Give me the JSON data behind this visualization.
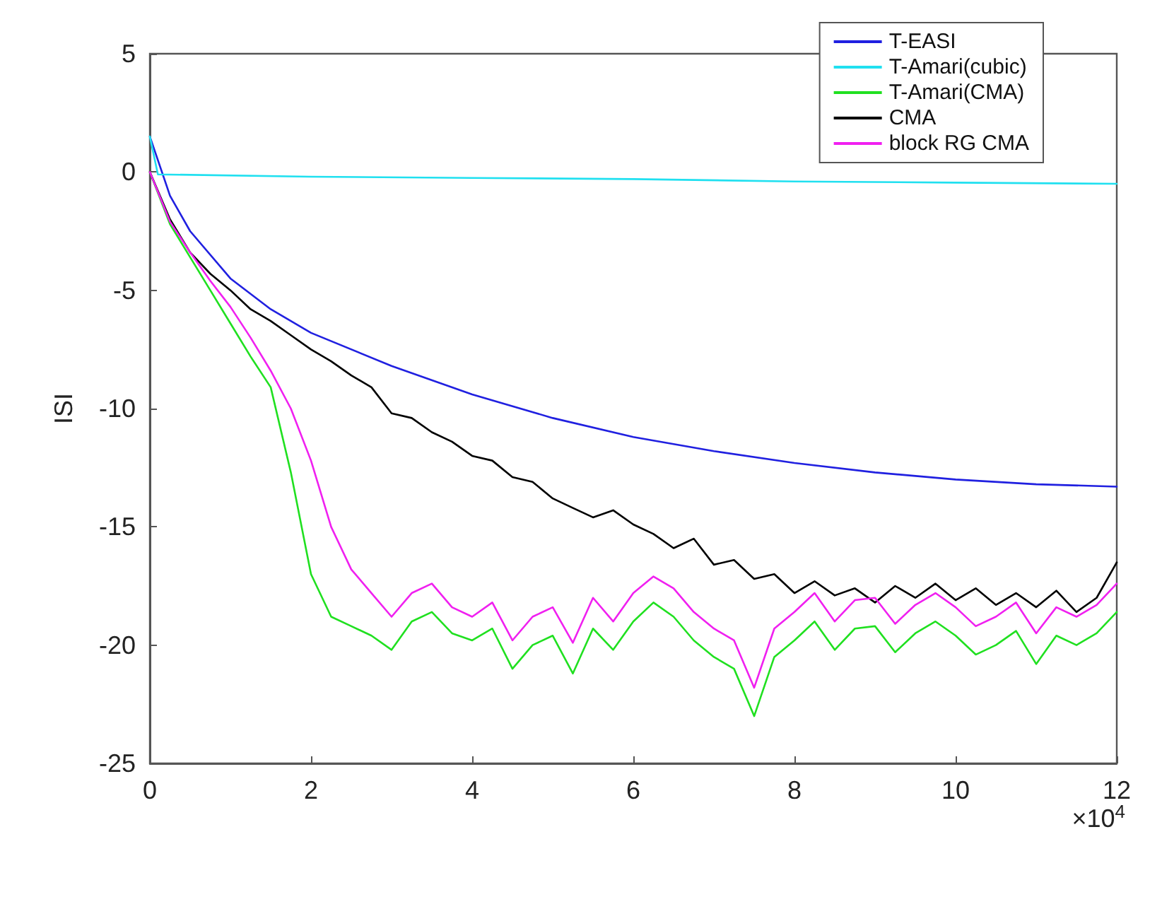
{
  "chart_data": {
    "type": "line",
    "ylabel": "ISI",
    "xlim": [
      0,
      12
    ],
    "xticks": [
      0,
      2,
      4,
      6,
      8,
      10,
      12
    ],
    "ylim": [
      -25,
      5
    ],
    "yticks": [
      -25,
      -20,
      -15,
      -10,
      -5,
      0,
      5
    ],
    "grid": false,
    "legend": "top right",
    "marker": "none",
    "line_style": "solid",
    "annotations": [
      "×10$^{4}$"
    ],
    "series": [
      {
        "name": "T-EASI",
        "color": "#2020e0",
        "x": [
          0,
          0.25,
          0.5,
          1,
          1.5,
          2,
          3,
          4,
          5,
          6,
          7,
          8,
          9,
          10,
          11,
          12
        ],
        "values": [
          1.5,
          -1,
          -2.5,
          -4.5,
          -5.8,
          -6.8,
          -8.2,
          -9.4,
          -10.4,
          -11.2,
          -11.8,
          -12.3,
          -12.7,
          -13,
          -13.2,
          -13.3
        ]
      },
      {
        "name": "T-Amari(cubic)",
        "color": "#20e0f0",
        "x": [
          0,
          0.1,
          2,
          4,
          6,
          8,
          10,
          12
        ],
        "values": [
          1.5,
          -0.1,
          -0.2,
          -0.25,
          -0.3,
          -0.4,
          -0.45,
          -0.5
        ]
      },
      {
        "name": "T-Amari(CMA)",
        "color": "#20e020",
        "x": [
          0,
          0.25,
          0.5,
          0.75,
          1,
          1.25,
          1.5,
          1.75,
          2,
          2.25,
          2.5,
          2.75,
          3,
          3.25,
          3.5,
          3.75,
          4,
          4.25,
          4.5,
          4.75,
          5,
          5.25,
          5.5,
          5.75,
          6,
          6.25,
          6.5,
          6.75,
          7,
          7.25,
          7.5,
          7.75,
          8,
          8.25,
          8.5,
          8.75,
          9,
          9.25,
          9.5,
          9.75,
          10,
          10.25,
          10.5,
          10.75,
          11,
          11.25,
          11.5,
          11.75,
          12
        ],
        "values": [
          0,
          -2.2,
          -3.6,
          -5.0,
          -6.4,
          -7.8,
          -9.1,
          -12.7,
          -17.0,
          -18.8,
          -19.2,
          -19.6,
          -20.2,
          -19.0,
          -18.6,
          -19.5,
          -19.8,
          -19.3,
          -21.0,
          -20.0,
          -19.6,
          -21.2,
          -19.3,
          -20.2,
          -19.0,
          -18.2,
          -18.8,
          -19.8,
          -20.5,
          -21.0,
          -23.0,
          -20.5,
          -19.8,
          -19.0,
          -20.2,
          -19.3,
          -19.2,
          -20.3,
          -19.5,
          -19.0,
          -19.6,
          -20.4,
          -20.0,
          -19.4,
          -20.8,
          -19.6,
          -20.0,
          -19.5,
          -18.6
        ]
      },
      {
        "name": "CMA",
        "color": "#000000",
        "x": [
          0,
          0.25,
          0.5,
          0.75,
          1,
          1.25,
          1.5,
          1.75,
          2,
          2.25,
          2.5,
          2.75,
          3,
          3.25,
          3.5,
          3.75,
          4,
          4.25,
          4.5,
          4.75,
          5,
          5.25,
          5.5,
          5.75,
          6,
          6.25,
          6.5,
          6.75,
          7,
          7.25,
          7.5,
          7.75,
          8,
          8.25,
          8.5,
          8.75,
          9,
          9.25,
          9.5,
          9.75,
          10,
          10.25,
          10.5,
          10.75,
          11,
          11.25,
          11.5,
          11.75,
          12
        ],
        "values": [
          0,
          -2,
          -3.4,
          -4.3,
          -5.0,
          -5.8,
          -6.3,
          -6.9,
          -7.5,
          -8.0,
          -8.6,
          -9.1,
          -10.2,
          -10.4,
          -11.0,
          -11.4,
          -12.0,
          -12.2,
          -12.9,
          -13.1,
          -13.8,
          -14.2,
          -14.6,
          -14.3,
          -14.9,
          -15.3,
          -15.9,
          -15.5,
          -16.6,
          -16.4,
          -17.2,
          -17.0,
          -17.8,
          -17.3,
          -17.9,
          -17.6,
          -18.2,
          -17.5,
          -18.0,
          -17.4,
          -18.1,
          -17.6,
          -18.3,
          -17.8,
          -18.4,
          -17.7,
          -18.6,
          -18.0,
          -16.5
        ]
      },
      {
        "name": "block RG CMA",
        "color": "#f020f0",
        "x": [
          0,
          0.25,
          0.5,
          0.75,
          1,
          1.25,
          1.5,
          1.75,
          2,
          2.25,
          2.5,
          2.75,
          3,
          3.25,
          3.5,
          3.75,
          4,
          4.25,
          4.5,
          4.75,
          5,
          5.25,
          5.5,
          5.75,
          6,
          6.25,
          6.5,
          6.75,
          7,
          7.25,
          7.5,
          7.75,
          8,
          8.25,
          8.5,
          8.75,
          9,
          9.25,
          9.5,
          9.75,
          10,
          10.25,
          10.5,
          10.75,
          11,
          11.25,
          11.5,
          11.75,
          12
        ],
        "values": [
          0,
          -2.1,
          -3.4,
          -4.6,
          -5.7,
          -7.0,
          -8.4,
          -10.0,
          -12.2,
          -15.0,
          -16.8,
          -17.8,
          -18.8,
          -17.8,
          -17.4,
          -18.4,
          -18.8,
          -18.2,
          -19.8,
          -18.8,
          -18.4,
          -19.9,
          -18.0,
          -19.0,
          -17.8,
          -17.1,
          -17.6,
          -18.6,
          -19.3,
          -19.8,
          -21.8,
          -19.3,
          -18.6,
          -17.8,
          -19.0,
          -18.1,
          -18.0,
          -19.1,
          -18.3,
          -17.8,
          -18.4,
          -19.2,
          -18.8,
          -18.2,
          -19.5,
          -18.4,
          -18.8,
          -18.3,
          -17.4
        ]
      }
    ]
  }
}
